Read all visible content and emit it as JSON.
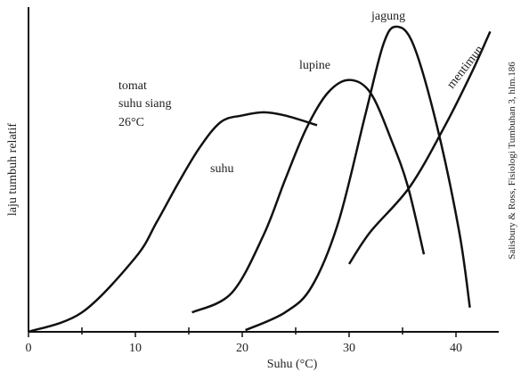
{
  "chart_data": {
    "type": "line",
    "x_label": "Suhu (°C)",
    "y_label": "laju tumbuh relatif",
    "source": "Salisbury & Ross, Fisiologi Tumbuhan 3, hlm.186",
    "annotations": [
      "suhu siang",
      "26°C",
      "suhu"
    ],
    "label_color": "#29a8e0",
    "xlim": [
      0,
      44
    ],
    "ylim": [
      0,
      100
    ],
    "xticks": [
      0,
      10,
      20,
      30,
      40
    ],
    "xminor_ticks": [
      5,
      15,
      25,
      35
    ],
    "series": [
      {
        "name": "tomat",
        "color": "#111111",
        "x": [
          0,
          5,
          10,
          12,
          14,
          16,
          18,
          20,
          22,
          24,
          27
        ],
        "values": [
          0,
          6,
          23,
          34,
          46,
          57,
          65,
          67,
          68,
          67,
          64
        ]
      },
      {
        "name": "lupine",
        "color": "#111111",
        "x": [
          15.3,
          19,
          22,
          24,
          26,
          28,
          30,
          32,
          34,
          35.5,
          37
        ],
        "values": [
          6,
          12,
          30,
          47,
          63,
          74,
          78,
          74,
          59,
          45,
          24
        ]
      },
      {
        "name": "jagung",
        "color": "#111111",
        "x": [
          20.3,
          24,
          26.5,
          29,
          31.5,
          33.2,
          34.4,
          36,
          38.2,
          40.3,
          41.3
        ],
        "values": [
          0.5,
          6,
          14,
          34,
          67,
          89,
          94.5,
          89,
          64,
          31,
          7.5
        ]
      },
      {
        "name": "mentimun",
        "color": "#111111",
        "x": [
          30,
          32,
          35.7,
          39,
          41.5,
          43.2
        ],
        "values": [
          21,
          31,
          45,
          64,
          80.5,
          93
        ]
      }
    ]
  }
}
